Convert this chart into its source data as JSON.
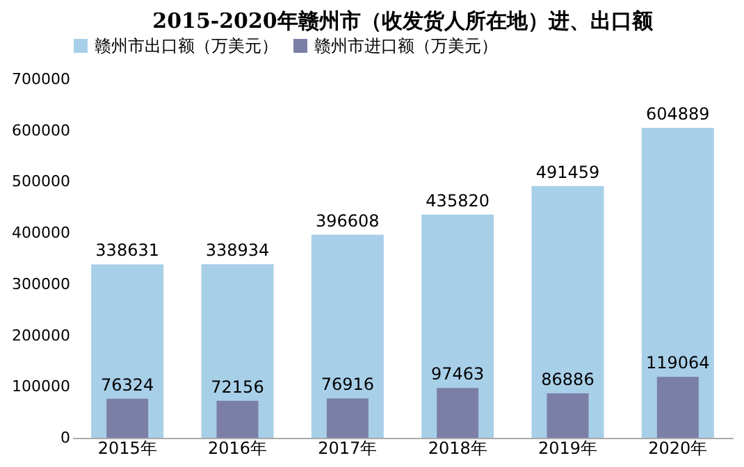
{
  "chart_data": {
    "type": "bar",
    "title": "2015-2020年赣州市（收发货人所在地）进、出口额",
    "categories": [
      "2015年",
      "2016年",
      "2017年",
      "2018年",
      "2019年",
      "2020年"
    ],
    "series": [
      {
        "name": "赣州市出口额（万美元）",
        "color": "#a8cfe8",
        "values": [
          338631,
          338934,
          396608,
          435820,
          491459,
          604889
        ]
      },
      {
        "name": "赣州市进口额（万美元）",
        "color": "#7b7fa6",
        "values": [
          76324,
          72156,
          76916,
          97463,
          86886,
          119064
        ]
      }
    ],
    "ylim": [
      0,
      700000
    ],
    "yticks": [
      0,
      100000,
      200000,
      300000,
      400000,
      500000,
      600000,
      700000
    ],
    "grid": false,
    "legend": "top",
    "data_labels": true
  }
}
